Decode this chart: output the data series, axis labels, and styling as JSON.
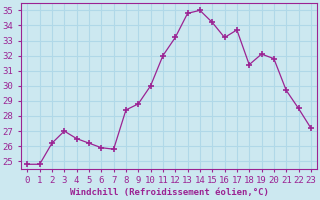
{
  "x": [
    0,
    1,
    2,
    3,
    4,
    5,
    6,
    7,
    8,
    9,
    10,
    11,
    12,
    13,
    14,
    15,
    16,
    17,
    18,
    19,
    20,
    21,
    22,
    23
  ],
  "y": [
    24.8,
    24.8,
    26.2,
    27.0,
    26.5,
    26.2,
    25.9,
    25.8,
    28.4,
    28.8,
    30.0,
    32.0,
    33.2,
    34.8,
    35.0,
    34.2,
    33.2,
    33.7,
    31.4,
    32.1,
    31.8,
    29.7,
    28.5,
    27.2
  ],
  "line_color": "#9b2393",
  "marker": "+",
  "marker_size": 4,
  "marker_lw": 1.2,
  "bg_color": "#cce8f0",
  "grid_color": "#b0d8e8",
  "xlim": [
    -0.5,
    23.5
  ],
  "ylim": [
    24.5,
    35.5
  ],
  "yticks": [
    25,
    26,
    27,
    28,
    29,
    30,
    31,
    32,
    33,
    34,
    35
  ],
  "xticks": [
    0,
    1,
    2,
    3,
    4,
    5,
    6,
    7,
    8,
    9,
    10,
    11,
    12,
    13,
    14,
    15,
    16,
    17,
    18,
    19,
    20,
    21,
    22,
    23
  ],
  "xlabel": "Windchill (Refroidissement éolien,°C)",
  "xlabel_color": "#9b2393",
  "tick_color": "#9b2393",
  "spine_color": "#9b2393",
  "tick_fontsize": 6.5,
  "xlabel_fontsize": 6.5
}
